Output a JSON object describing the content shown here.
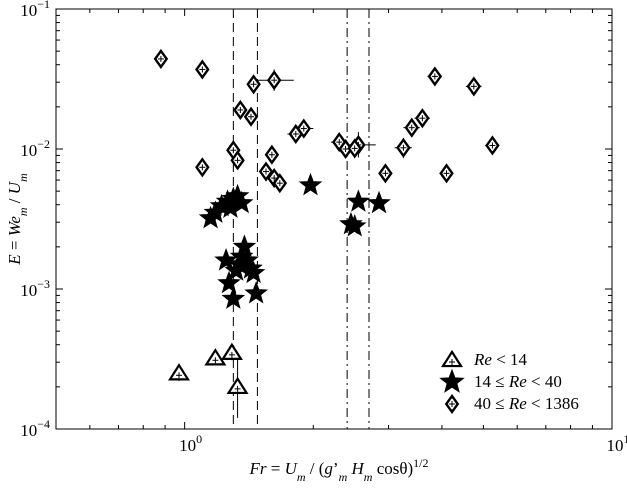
{
  "chart_data": {
    "type": "scatter",
    "xscale": "log",
    "yscale": "log",
    "xlim": [
      0.5,
      10
    ],
    "ylim": [
      0.0001,
      0.1
    ],
    "grid": false,
    "legend_position": "bottom-right",
    "xlabel": {
      "parts": [
        {
          "t": "Fr",
          "i": true
        },
        {
          "t": " = ",
          "i": false
        },
        {
          "t": "U",
          "i": true
        },
        {
          "t": "m",
          "i": true,
          "sub": true
        },
        {
          "t": " / (",
          "i": false
        },
        {
          "t": "g",
          "i": true
        },
        {
          "t": "’",
          "i": false
        },
        {
          "t": "m",
          "i": true,
          "sub": true
        },
        {
          "t": " ",
          "i": false
        },
        {
          "t": "H",
          "i": true
        },
        {
          "t": "m",
          "i": true,
          "sub": true
        },
        {
          "t": " cosθ)",
          "i": false
        },
        {
          "t": "1/2",
          "i": false,
          "sup": true
        }
      ]
    },
    "ylabel": {
      "parts": [
        {
          "t": "E",
          "i": true
        },
        {
          "t": " = ",
          "i": false
        },
        {
          "t": "We",
          "i": true
        },
        {
          "t": "m",
          "i": true,
          "sub": true
        },
        {
          "t": " / ",
          "i": false
        },
        {
          "t": "U",
          "i": true
        },
        {
          "t": "m",
          "i": true,
          "sub": true
        }
      ]
    },
    "x_ticks": [
      {
        "value": 1,
        "base": "10",
        "exp": "0"
      },
      {
        "value": 10,
        "base": "10",
        "exp": "1"
      }
    ],
    "y_ticks": [
      {
        "value": 0.0001,
        "base": "10",
        "exp": "−4"
      },
      {
        "value": 0.001,
        "base": "10",
        "exp": "−3"
      },
      {
        "value": 0.01,
        "base": "10",
        "exp": "−2"
      },
      {
        "value": 0.1,
        "base": "10",
        "exp": "−1"
      }
    ],
    "vertical_lines": [
      {
        "x": 1.3,
        "style": "dashed"
      },
      {
        "x": 1.48,
        "style": "dashed"
      },
      {
        "x": 2.4,
        "style": "dashdot"
      },
      {
        "x": 2.7,
        "style": "dashdot"
      }
    ],
    "series": [
      {
        "name": "Re < 14",
        "marker": "triangle",
        "points": [
          {
            "x": 0.97,
            "y": 0.00025,
            "xerr": [
              0.94,
              1.0
            ],
            "yerr": [
              0.00022,
              0.00029
            ]
          },
          {
            "x": 1.18,
            "y": 0.00032,
            "xerr": [
              1.15,
              1.21
            ],
            "yerr": [
              0.00029,
              0.00035
            ]
          },
          {
            "x": 1.29,
            "y": 0.00035,
            "xerr": [
              1.26,
              1.32
            ],
            "yerr": [
              0.00031,
              0.0004
            ]
          },
          {
            "x": 1.33,
            "y": 0.0002,
            "xerr": [
              1.3,
              1.36
            ],
            "yerr": [
              0.00012,
              0.00033
            ]
          }
        ]
      },
      {
        "name": "14 ≤ Re < 40",
        "marker": "star",
        "points": [
          {
            "x": 1.15,
            "y": 0.0032
          },
          {
            "x": 1.18,
            "y": 0.0035
          },
          {
            "x": 1.22,
            "y": 0.0039
          },
          {
            "x": 1.26,
            "y": 0.0042
          },
          {
            "x": 1.3,
            "y": 0.0044
          },
          {
            "x": 1.33,
            "y": 0.0046
          },
          {
            "x": 1.36,
            "y": 0.0041
          },
          {
            "x": 1.28,
            "y": 0.0038
          },
          {
            "x": 1.25,
            "y": 0.0016
          },
          {
            "x": 1.27,
            "y": 0.0011
          },
          {
            "x": 1.3,
            "y": 0.00085
          },
          {
            "x": 1.34,
            "y": 0.0015
          },
          {
            "x": 1.36,
            "y": 0.0017
          },
          {
            "x": 1.38,
            "y": 0.002
          },
          {
            "x": 1.4,
            "y": 0.0016
          },
          {
            "x": 1.43,
            "y": 0.0014
          },
          {
            "x": 1.45,
            "y": 0.0013
          },
          {
            "x": 1.47,
            "y": 0.00093
          },
          {
            "x": 1.32,
            "y": 0.00135
          },
          {
            "x": 1.97,
            "y": 0.0055
          },
          {
            "x": 2.45,
            "y": 0.0029
          },
          {
            "x": 2.5,
            "y": 0.0028
          },
          {
            "x": 2.55,
            "y": 0.0042
          },
          {
            "x": 2.85,
            "y": 0.0041
          }
        ]
      },
      {
        "name": "40 ≤ Re < 1386",
        "marker": "diamond",
        "points": [
          {
            "x": 0.88,
            "y": 0.044,
            "xerr": [
              0.86,
              0.9
            ]
          },
          {
            "x": 1.1,
            "y": 0.037,
            "xerr": [
              1.07,
              1.13
            ]
          },
          {
            "x": 1.1,
            "y": 0.0074,
            "xerr": [
              1.07,
              1.13
            ]
          },
          {
            "x": 1.3,
            "y": 0.0098,
            "xerr": [
              1.27,
              1.33
            ]
          },
          {
            "x": 1.35,
            "y": 0.019,
            "xerr": [
              1.32,
              1.38
            ]
          },
          {
            "x": 1.33,
            "y": 0.0083,
            "xerr": [
              1.3,
              1.36
            ]
          },
          {
            "x": 1.43,
            "y": 0.017,
            "xerr": [
              1.39,
              1.47
            ]
          },
          {
            "x": 1.45,
            "y": 0.029,
            "xerr": [
              1.41,
              1.49
            ]
          },
          {
            "x": 1.62,
            "y": 0.031,
            "xerr": [
              1.45,
              1.8
            ],
            "yerr": [
              0.026,
              0.037
            ]
          },
          {
            "x": 1.55,
            "y": 0.0069,
            "xerr": [
              1.51,
              1.6
            ]
          },
          {
            "x": 1.62,
            "y": 0.0062,
            "xerr": [
              1.57,
              1.67
            ]
          },
          {
            "x": 1.6,
            "y": 0.0091,
            "xerr": [
              1.56,
              1.64
            ]
          },
          {
            "x": 1.67,
            "y": 0.0057,
            "xerr": [
              1.62,
              1.72
            ]
          },
          {
            "x": 1.82,
            "y": 0.0128,
            "xerr": [
              1.74,
              1.9
            ]
          },
          {
            "x": 1.9,
            "y": 0.014,
            "xerr": [
              1.8,
              2.0
            ]
          },
          {
            "x": 2.3,
            "y": 0.0112,
            "xerr": [
              2.2,
              2.4
            ]
          },
          {
            "x": 2.38,
            "y": 0.01,
            "xerr": [
              2.28,
              2.48
            ]
          },
          {
            "x": 2.55,
            "y": 0.0107,
            "xerr": [
              2.3,
              2.8
            ],
            "yerr": [
              0.0087,
              0.0132
            ]
          },
          {
            "x": 2.5,
            "y": 0.0101,
            "xerr": [
              2.4,
              2.6
            ]
          },
          {
            "x": 2.95,
            "y": 0.0067,
            "xerr": [
              2.85,
              3.05
            ]
          },
          {
            "x": 3.25,
            "y": 0.0102,
            "xerr": [
              3.1,
              3.4
            ],
            "yerr": [
              0.0086,
              0.012
            ]
          },
          {
            "x": 3.6,
            "y": 0.0166,
            "xerr": [
              3.45,
              3.75
            ]
          },
          {
            "x": 3.4,
            "y": 0.0142,
            "xerr": [
              3.25,
              3.55
            ]
          },
          {
            "x": 3.85,
            "y": 0.033,
            "xerr": [
              3.7,
              4.0
            ]
          },
          {
            "x": 4.1,
            "y": 0.0067,
            "xerr": [
              3.95,
              4.25
            ]
          },
          {
            "x": 4.75,
            "y": 0.028,
            "xerr": [
              4.55,
              4.95
            ]
          },
          {
            "x": 5.25,
            "y": 0.0106,
            "xerr": [
              5.05,
              5.45
            ]
          }
        ]
      }
    ],
    "legend": [
      {
        "marker": "triangle",
        "parts": [
          {
            "t": "Re",
            "i": true
          },
          {
            "t": " < 14",
            "i": false
          }
        ]
      },
      {
        "marker": "star",
        "parts": [
          {
            "t": "14 ≤ ",
            "i": false
          },
          {
            "t": "Re",
            "i": true
          },
          {
            "t": " < 40",
            "i": false
          }
        ]
      },
      {
        "marker": "diamond",
        "parts": [
          {
            "t": "40 ≤ ",
            "i": false
          },
          {
            "t": "Re",
            "i": true
          },
          {
            "t": " < 1386",
            "i": false
          }
        ]
      }
    ]
  }
}
